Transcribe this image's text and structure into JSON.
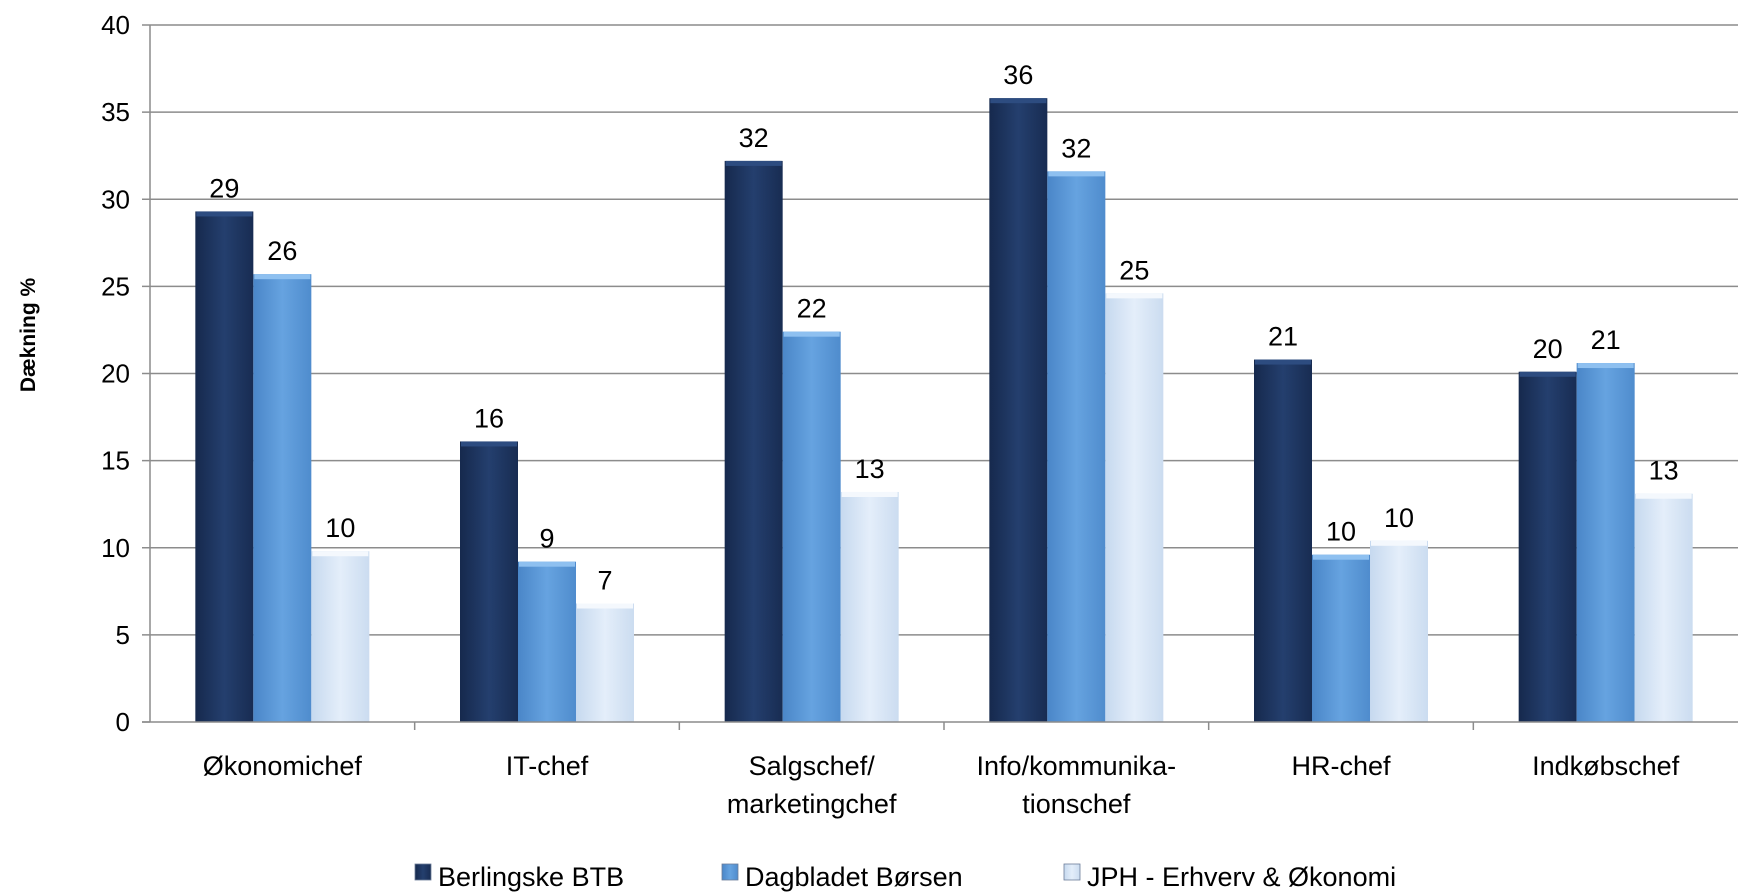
{
  "chart_data": {
    "type": "bar",
    "ylabel": "Dækning %",
    "ylim": [
      0,
      40
    ],
    "yticks": [
      0,
      5,
      10,
      15,
      20,
      25,
      30,
      35,
      40
    ],
    "grid": true,
    "legend_position": "bottom",
    "categories": [
      [
        "Økonomichef"
      ],
      [
        "IT-chef"
      ],
      [
        "Salgschef/",
        "marketingchef"
      ],
      [
        "Info/kommunika-",
        "tionschef"
      ],
      [
        "HR-chef"
      ],
      [
        "Indkøbschef"
      ]
    ],
    "series": [
      {
        "name": "Berlingske BTB",
        "color": "#1f3864",
        "values": [
          29.3,
          16.1,
          32.2,
          35.8,
          20.8,
          20.1
        ],
        "labels": [
          "29",
          "16",
          "32",
          "36",
          "21",
          "20"
        ]
      },
      {
        "name": "Dagbladet Børsen",
        "color": "#5b9bd5",
        "values": [
          25.7,
          9.2,
          22.4,
          31.6,
          9.6,
          20.6
        ],
        "labels": [
          "26",
          "9",
          "22",
          "32",
          "10",
          "21"
        ]
      },
      {
        "name": "JPH - Erhverv & Økonomi",
        "color": "#d6e6f7",
        "values": [
          9.8,
          6.8,
          13.2,
          24.6,
          10.4,
          13.1
        ],
        "labels": [
          "10",
          "7",
          "13",
          "25",
          "10",
          "13"
        ]
      }
    ]
  }
}
